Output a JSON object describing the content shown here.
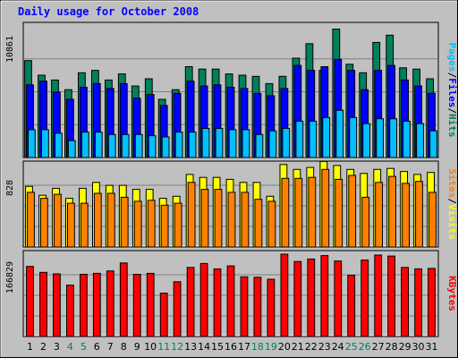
{
  "chart_data": {
    "type": "bar",
    "title": "Daily usage for October 2008",
    "categories": [
      "1",
      "2",
      "3",
      "4",
      "5",
      "6",
      "7",
      "8",
      "9",
      "10",
      "11",
      "12",
      "13",
      "14",
      "15",
      "16",
      "17",
      "18",
      "19",
      "20",
      "21",
      "22",
      "23",
      "24",
      "25",
      "26",
      "27",
      "28",
      "29",
      "30",
      "31"
    ],
    "weekend_days": [
      "4",
      "5",
      "11",
      "12",
      "18",
      "19",
      "25",
      "26"
    ],
    "colors": {
      "background": "#c0c0c0",
      "plot": "#c0c0c0",
      "title": "#0000ff",
      "hits": "#00805c",
      "files": "#0000ff",
      "pages": "#00c0ff",
      "visits": "#ffff00",
      "sites": "#ff8000",
      "kbytes": "#ff0000",
      "weekend_label": "#00805c"
    },
    "panels": [
      {
        "id": "hits-files-pages",
        "max_label": "10861",
        "ymax": 10861,
        "legend": [
          {
            "text": "Pages",
            "color": "#00c0ff"
          },
          {
            "text": "/",
            "color": "#000000"
          },
          {
            "text": "Files",
            "color": "#0000ff"
          },
          {
            "text": "/",
            "color": "#000000"
          },
          {
            "text": "Hits",
            "color": "#00805c"
          }
        ],
        "series": [
          {
            "name": "Hits",
            "color": "#00805c",
            "values": [
              8000,
              6800,
              6400,
              5600,
              7000,
              7200,
              6400,
              6900,
              5900,
              6500,
              4800,
              5600,
              7500,
              7300,
              7300,
              6900,
              6800,
              6700,
              6100,
              6700,
              8200,
              9400,
              7200,
              10600,
              7700,
              7000,
              9500,
              10100,
              7400,
              7300,
              6500
            ]
          },
          {
            "name": "Files",
            "color": "#0000ff",
            "values": [
              6000,
              6300,
              5400,
              4800,
              5800,
              6100,
              5700,
              6100,
              4900,
              5200,
              4300,
              5300,
              6300,
              5900,
              6000,
              5800,
              5700,
              5300,
              5100,
              5700,
              7600,
              7200,
              7500,
              8100,
              7200,
              5600,
              7200,
              7600,
              6400,
              5900,
              5300
            ]
          },
          {
            "name": "Pages",
            "color": "#00c0ff",
            "values": [
              2300,
              2300,
              2000,
              1400,
              2100,
              2100,
              1900,
              1900,
              1900,
              1800,
              1700,
              2100,
              2100,
              2400,
              2400,
              2300,
              2300,
              1900,
              2200,
              2400,
              3000,
              3000,
              3300,
              3900,
              3300,
              2800,
              3200,
              3200,
              3000,
              2800,
              2200
            ]
          }
        ]
      },
      {
        "id": "visits-sites",
        "max_label": "828",
        "ymax": 828,
        "legend": [
          {
            "text": "Sites",
            "color": "#ff8000"
          },
          {
            "text": "/",
            "color": "#000000"
          },
          {
            "text": "Visits",
            "color": "#ffff00"
          }
        ],
        "series": [
          {
            "name": "Visits",
            "color": "#ffff00",
            "values": [
              610,
              520,
              590,
              490,
              590,
              650,
              620,
              620,
              580,
              580,
              490,
              510,
              730,
              700,
              700,
              680,
              650,
              650,
              510,
              830,
              780,
              800,
              860,
              820,
              780,
              740,
              780,
              790,
              760,
              730,
              750
            ]
          },
          {
            "name": "Sites",
            "color": "#ff8000",
            "values": [
              550,
              490,
              530,
              440,
              440,
              540,
              540,
              500,
              460,
              470,
              420,
              440,
              650,
              580,
              580,
              550,
              550,
              480,
              460,
              690,
              690,
              700,
              780,
              680,
              720,
              500,
              650,
              710,
              640,
              660,
              550
            ]
          }
        ]
      },
      {
        "id": "kbytes",
        "max_label": "166829",
        "ymax": 166829,
        "legend": [
          {
            "text": "KBytes",
            "color": "#ff0000"
          }
        ],
        "series": [
          {
            "name": "KBytes",
            "color": "#ff0000",
            "values": [
              142000,
              130000,
              127000,
              104000,
              126000,
              128000,
              133000,
              149000,
              126000,
              128000,
              88000,
              111000,
              140000,
              148000,
              137000,
              143000,
              121000,
              120000,
              116000,
              166829,
              152000,
              157000,
              164000,
              153000,
              124000,
              155000,
              165000,
              163000,
              140000,
              137000,
              138000
            ]
          }
        ]
      }
    ]
  }
}
